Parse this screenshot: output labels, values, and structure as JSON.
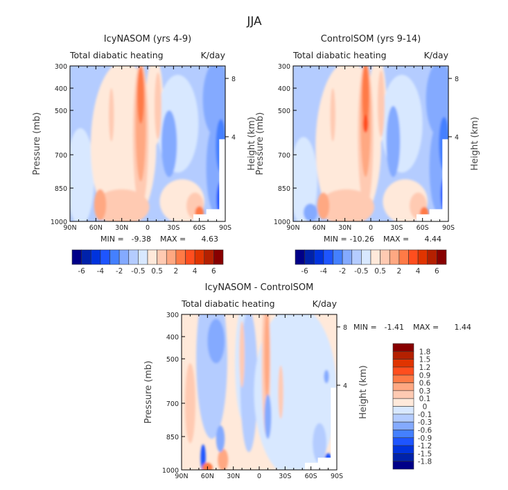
{
  "figure_title": "JJA",
  "colors_16": [
    "#000088",
    "#0022aa",
    "#0033dd",
    "#1e55ff",
    "#4480ff",
    "#84aaff",
    "#b4ccff",
    "#d8e8ff",
    "#ffe9da",
    "#ffcab2",
    "#ffa882",
    "#ff7a46",
    "#ff4e1e",
    "#e03400",
    "#b42000",
    "#880000"
  ],
  "chart_data": [
    {
      "type": "heatmap",
      "title": "IcyNASOM (yrs 4-9)",
      "left_subtitle": "Total diabatic heating",
      "right_subtitle": "K/day",
      "ylabel": "Pressure (mb)",
      "ylabel_right": "Height (km)",
      "x_ticks": [
        "90N",
        "60N",
        "30N",
        "0",
        "30S",
        "60S",
        "90S"
      ],
      "y_ticks": [
        "300",
        "400",
        "500",
        "700",
        "850",
        "1000"
      ],
      "y_right_ticks": [
        "8",
        "4"
      ],
      "xlim": [
        "90N",
        "90S"
      ],
      "ylim": [
        1000,
        300
      ],
      "min_label": "MIN =",
      "min_value": "-9.38",
      "max_label": "MAX =",
      "max_value": "4.63",
      "colorbar_labels": [
        "-6",
        "-4",
        "-2",
        "-0.5",
        "0.5",
        "2",
        "4",
        "6"
      ],
      "colorbar_orientation": "horizontal"
    },
    {
      "type": "heatmap",
      "title": "ControlSOM (yrs 9-14)",
      "left_subtitle": "Total diabatic heating",
      "right_subtitle": "K/day",
      "ylabel": "Pressure (mb)",
      "ylabel_right": "Height (km)",
      "x_ticks": [
        "90N",
        "60N",
        "30N",
        "0",
        "30S",
        "60S",
        "90S"
      ],
      "y_ticks": [
        "300",
        "400",
        "500",
        "700",
        "850",
        "1000"
      ],
      "y_right_ticks": [
        "8",
        "4"
      ],
      "xlim": [
        "90N",
        "90S"
      ],
      "ylim": [
        1000,
        300
      ],
      "min_label": "MIN =",
      "min_value": "-10.26",
      "max_label": "MAX =",
      "max_value": "4.44",
      "colorbar_labels": [
        "-6",
        "-4",
        "-2",
        "-0.5",
        "0.5",
        "2",
        "4",
        "6"
      ],
      "colorbar_orientation": "horizontal"
    },
    {
      "type": "heatmap",
      "title": "IcyNASOM - ControlSOM",
      "left_subtitle": "Total diabatic heating",
      "right_subtitle": "K/day",
      "ylabel": "Pressure (mb)",
      "ylabel_right": "Height (km)",
      "x_ticks": [
        "90N",
        "60N",
        "30N",
        "0",
        "30S",
        "60S",
        "90S"
      ],
      "y_ticks": [
        "300",
        "400",
        "500",
        "700",
        "850",
        "1000"
      ],
      "y_right_ticks": [
        "8",
        "4"
      ],
      "xlim": [
        "90N",
        "90S"
      ],
      "ylim": [
        1000,
        300
      ],
      "min_label": "MIN =",
      "min_value": "-1.41",
      "max_label": "MAX =",
      "max_value": "1.44",
      "colorbar_labels": [
        "1.8",
        "1.5",
        "1.2",
        "0.9",
        "0.6",
        "0.3",
        "0.1",
        "0",
        "-0.1",
        "-0.3",
        "-0.6",
        "-0.9",
        "-1.2",
        "-1.5",
        "-1.8"
      ],
      "colorbar_orientation": "vertical"
    }
  ]
}
